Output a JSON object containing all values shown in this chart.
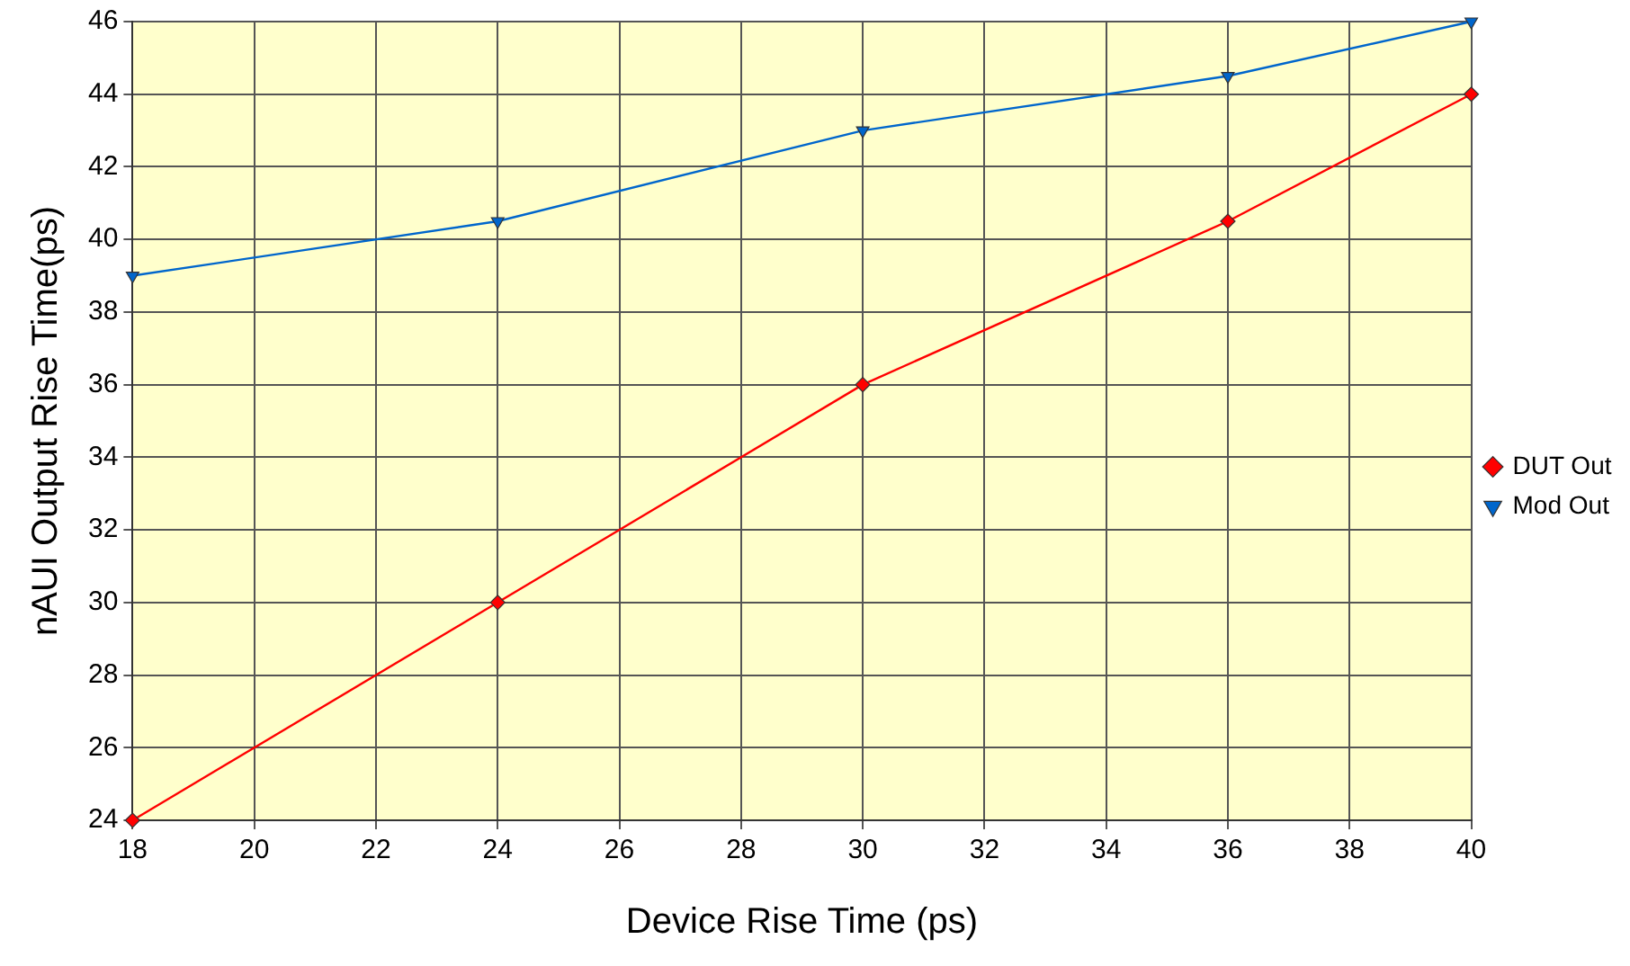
{
  "chart_data": {
    "type": "line",
    "xlabel": "Device Rise Time (ps)",
    "ylabel": "nAUI Output Rise Time(ps)",
    "x": [
      18,
      24,
      30,
      36,
      40
    ],
    "series": [
      {
        "name": "DUT Out",
        "color": "#ff0000",
        "marker": "diamond",
        "values": [
          24,
          30,
          36,
          40.5,
          44
        ]
      },
      {
        "name": "Mod Out",
        "color": "#0066cc",
        "marker": "triangle",
        "values": [
          39,
          40.5,
          43,
          44.5,
          46
        ]
      }
    ],
    "xlim": [
      18,
      40
    ],
    "xticks": [
      18,
      20,
      22,
      24,
      26,
      28,
      30,
      32,
      34,
      36,
      38,
      40
    ],
    "ylim": [
      24,
      46
    ],
    "yticks": [
      24,
      26,
      28,
      30,
      32,
      34,
      36,
      38,
      40,
      42,
      44,
      46
    ],
    "grid": true,
    "legend": "right",
    "line_style": "solid"
  }
}
